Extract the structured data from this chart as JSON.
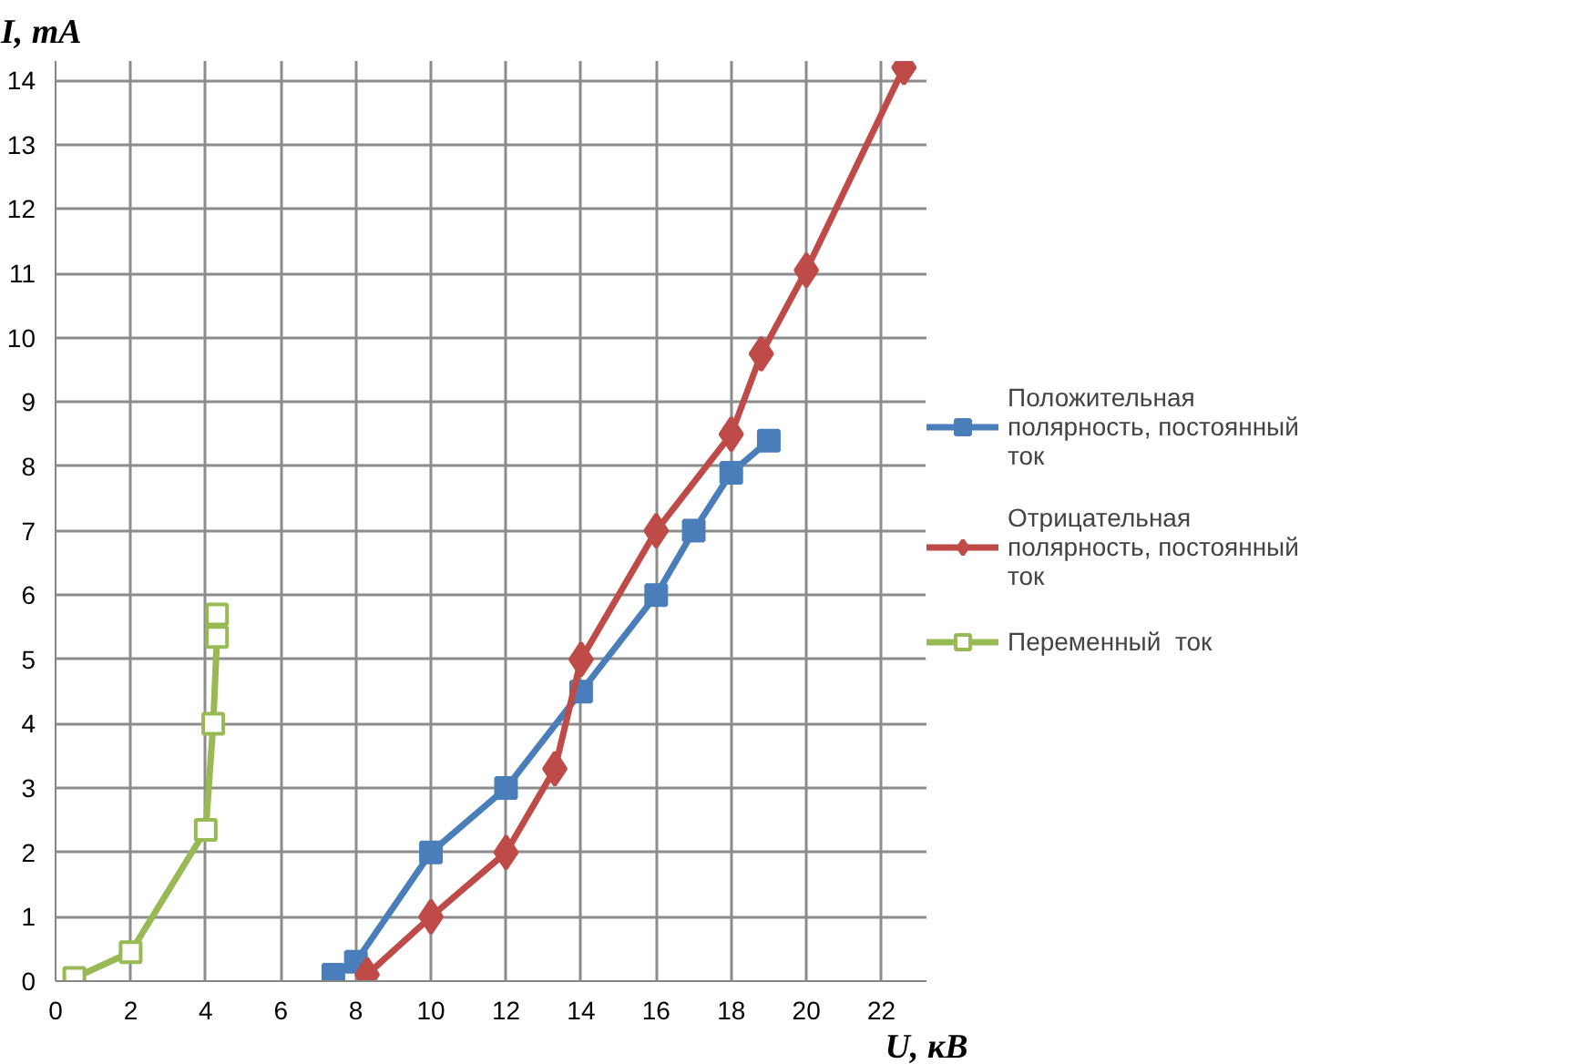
{
  "chart_data": {
    "type": "line",
    "xlabel": "U, кВ",
    "ylabel": "I, mA",
    "xlim": [
      0,
      23.2
    ],
    "ylim": [
      0,
      14.3
    ],
    "xticks": [
      0,
      2,
      4,
      6,
      8,
      10,
      12,
      14,
      16,
      18,
      20,
      22
    ],
    "yticks": [
      0,
      1,
      2,
      3,
      4,
      5,
      6,
      7,
      8,
      9,
      10,
      11,
      12,
      13,
      14
    ],
    "grid": true,
    "legend": "right",
    "line_style": "solid",
    "series": [
      {
        "name": "Положительная полярность, постоянный ток",
        "color": "#4a7ebb",
        "marker": "square",
        "x": [
          7.4,
          8,
          10,
          12,
          14,
          16,
          17,
          18,
          19
        ],
        "values": [
          0.1,
          0.3,
          2,
          3,
          4.5,
          6,
          7,
          7.9,
          8.4
        ]
      },
      {
        "name": "Отрицательная полярность, постоянный ток",
        "color": "#be4b48",
        "marker": "diamond",
        "x": [
          8.3,
          10,
          12,
          13.3,
          14,
          16,
          18,
          18.8,
          20,
          22.6
        ],
        "values": [
          0.1,
          1,
          2,
          3.3,
          5,
          7,
          8.5,
          9.75,
          11.05,
          14.2
        ]
      },
      {
        "name": "Переменный  ток",
        "color": "#98b954",
        "marker": "square_open",
        "x": [
          0.5,
          2,
          4,
          4.2,
          4.3,
          4.3
        ],
        "values": [
          0.05,
          0.45,
          2.35,
          4,
          5.35,
          5.7
        ]
      }
    ]
  }
}
